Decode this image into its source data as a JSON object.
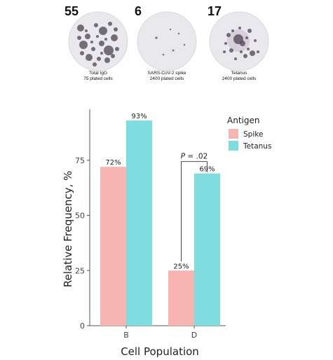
{
  "wells": [
    {
      "count": "55",
      "caption_line1": "Total IgG",
      "caption_line2": "75 plated cells",
      "spots": "dense"
    },
    {
      "count": "6",
      "caption_line1": "SARS-CoV-2 spike",
      "caption_line2": "2400 plated cells",
      "spots": "sparse"
    },
    {
      "count": "17",
      "caption_line1": "Tetanus",
      "caption_line2": "2400 plated cells",
      "spots": "medium"
    }
  ],
  "colors": {
    "spike": "#F8B4B0",
    "tetanus": "#7FDDE0",
    "well_bg": "#E9E8EC",
    "spot": "#4A4550"
  },
  "chart_data": {
    "type": "bar",
    "categories": [
      "B",
      "D"
    ],
    "series": [
      {
        "name": "Spike",
        "values": [
          72,
          25
        ],
        "labels": [
          "72%",
          "25%"
        ]
      },
      {
        "name": "Tetanus",
        "values": [
          93,
          69
        ],
        "labels": [
          "93%",
          "69%"
        ]
      }
    ],
    "xlabel": "Cell Population",
    "ylabel": "Relative Frequency, %",
    "ylim": [
      0,
      100
    ],
    "yticks": [
      0,
      25,
      50,
      75
    ],
    "legend_title": "Antigen",
    "legend_position": "top-right",
    "grid": false,
    "annotation": {
      "category": "D",
      "p_label": "P",
      "p_value": " = .02"
    }
  }
}
